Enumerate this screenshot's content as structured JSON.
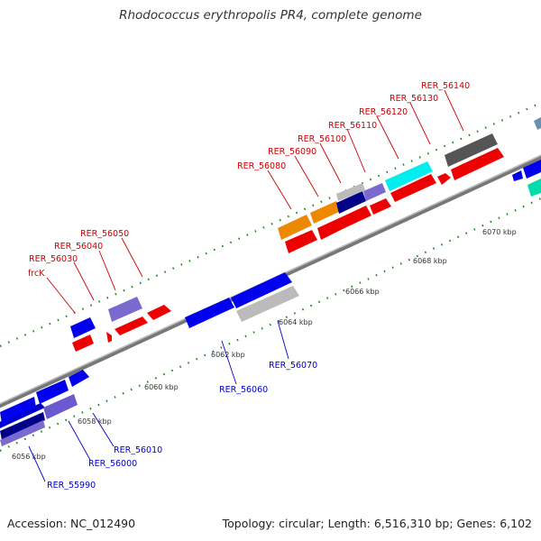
{
  "title": "Rhodococcus erythropolis PR4, complete genome",
  "footer": {
    "accession": "Accession: NC_012490",
    "topology": "Topology: circular; Length: 6,516,310 bp; Genes: 6,102"
  },
  "colors": {
    "label_top": "#cc0000",
    "label_bottom": "#0000cc",
    "backbone": "#888888",
    "tick": "#1a7a1a"
  },
  "ruler": [
    "6056 kbp",
    "6058 kbp",
    "6060 kbp",
    "6062 kbp",
    "6064 kbp",
    "6066 kbp",
    "6068 kbp",
    "6070 kbp"
  ],
  "top_labels": [
    "frcK",
    "RER_56030",
    "RER_56040",
    "RER_56050",
    "RER_56080",
    "RER_56090",
    "RER_56100",
    "RER_56110",
    "RER_56120",
    "RER_56130",
    "RER_56140"
  ],
  "bottom_labels": [
    "RER_55990",
    "RER_56000",
    "RER_56010",
    "RER_56060",
    "RER_56070"
  ]
}
